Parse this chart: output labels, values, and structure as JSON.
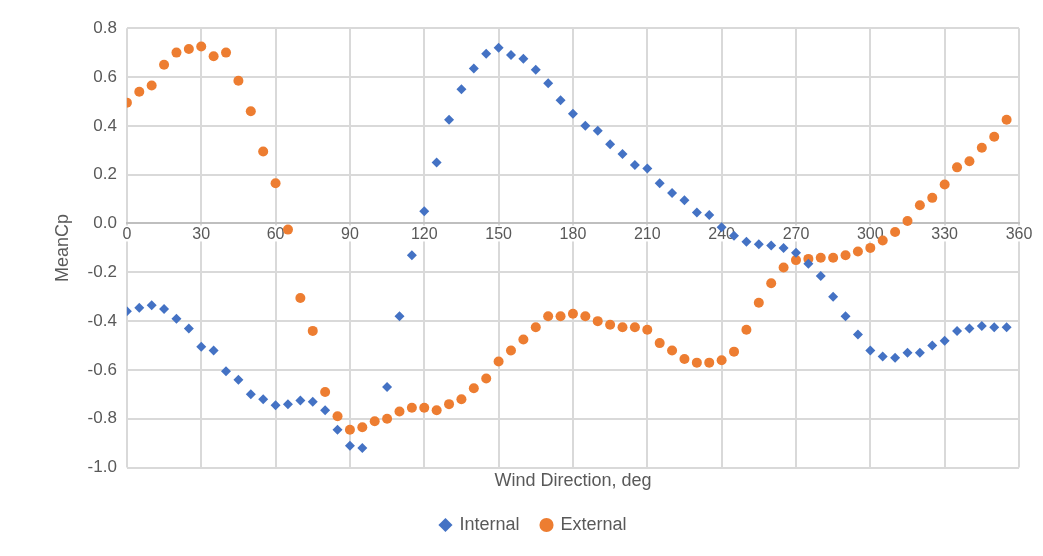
{
  "chart_data": {
    "type": "scatter",
    "xlabel": "Wind Direction, deg",
    "ylabel": "MeanCp",
    "x": [
      0,
      5,
      10,
      15,
      20,
      25,
      30,
      35,
      40,
      45,
      50,
      55,
      60,
      65,
      70,
      75,
      80,
      85,
      90,
      95,
      100,
      105,
      110,
      115,
      120,
      125,
      130,
      135,
      140,
      145,
      150,
      155,
      160,
      165,
      170,
      175,
      180,
      185,
      190,
      195,
      200,
      205,
      210,
      215,
      220,
      225,
      230,
      235,
      240,
      245,
      250,
      255,
      260,
      265,
      270,
      275,
      280,
      285,
      290,
      295,
      300,
      305,
      310,
      315,
      320,
      325,
      330,
      335,
      340,
      345,
      350,
      355
    ],
    "series": [
      {
        "name": "Internal",
        "color": "#4472c4",
        "marker": "diamond",
        "values": [
          -0.36,
          -0.345,
          -0.335,
          -0.35,
          -0.39,
          -0.43,
          -0.505,
          -0.52,
          -0.605,
          -0.64,
          -0.7,
          -0.72,
          -0.745,
          -0.74,
          -0.725,
          -0.73,
          -0.765,
          -0.845,
          -0.91,
          -0.92,
          null,
          -0.67,
          -0.38,
          -0.13,
          0.05,
          0.25,
          0.425,
          0.55,
          0.635,
          0.695,
          0.72,
          0.69,
          0.675,
          0.63,
          0.575,
          0.505,
          0.45,
          0.4,
          0.38,
          0.325,
          0.285,
          0.24,
          0.225,
          0.165,
          0.125,
          0.095,
          0.045,
          0.035,
          -0.015,
          -0.05,
          -0.075,
          -0.085,
          -0.09,
          -0.1,
          -0.12,
          -0.165,
          -0.215,
          -0.3,
          -0.38,
          -0.455,
          -0.52,
          -0.545,
          -0.55,
          -0.53,
          -0.53,
          -0.5,
          -0.48,
          -0.44,
          -0.43,
          -0.42,
          -0.425,
          -0.425
        ]
      },
      {
        "name": "External",
        "color": "#ed7d31",
        "marker": "circle",
        "values": [
          0.495,
          0.54,
          0.565,
          0.65,
          0.7,
          0.715,
          0.725,
          0.685,
          0.7,
          0.585,
          0.46,
          0.295,
          0.165,
          -0.025,
          -0.305,
          -0.44,
          -0.69,
          -0.79,
          -0.845,
          -0.835,
          -0.81,
          -0.8,
          -0.77,
          -0.755,
          -0.755,
          -0.765,
          -0.74,
          -0.72,
          -0.675,
          -0.635,
          -0.565,
          -0.52,
          -0.475,
          -0.425,
          -0.38,
          -0.38,
          -0.37,
          -0.38,
          -0.4,
          -0.415,
          -0.425,
          -0.425,
          -0.435,
          -0.49,
          -0.52,
          -0.555,
          -0.57,
          -0.57,
          -0.56,
          -0.525,
          -0.435,
          -0.325,
          -0.245,
          -0.18,
          -0.15,
          -0.145,
          -0.14,
          -0.14,
          -0.13,
          -0.115,
          -0.1,
          -0.07,
          -0.035,
          0.01,
          0.075,
          0.105,
          0.16,
          0.23,
          0.255,
          0.31,
          0.355,
          0.425
        ]
      }
    ],
    "xlim": [
      0,
      360
    ],
    "xticks": [
      0,
      30,
      60,
      90,
      120,
      150,
      180,
      210,
      240,
      270,
      300,
      330,
      360
    ],
    "ylim": [
      -1,
      0.8
    ],
    "yticks": [
      {
        "value": -1,
        "label": "-1.0"
      },
      -0.8,
      -0.6,
      -0.4,
      -0.2,
      {
        "value": 0,
        "label": "0.0"
      },
      0.2,
      0.4,
      0.6,
      0.8
    ],
    "grid": true,
    "legend": "bottom"
  }
}
